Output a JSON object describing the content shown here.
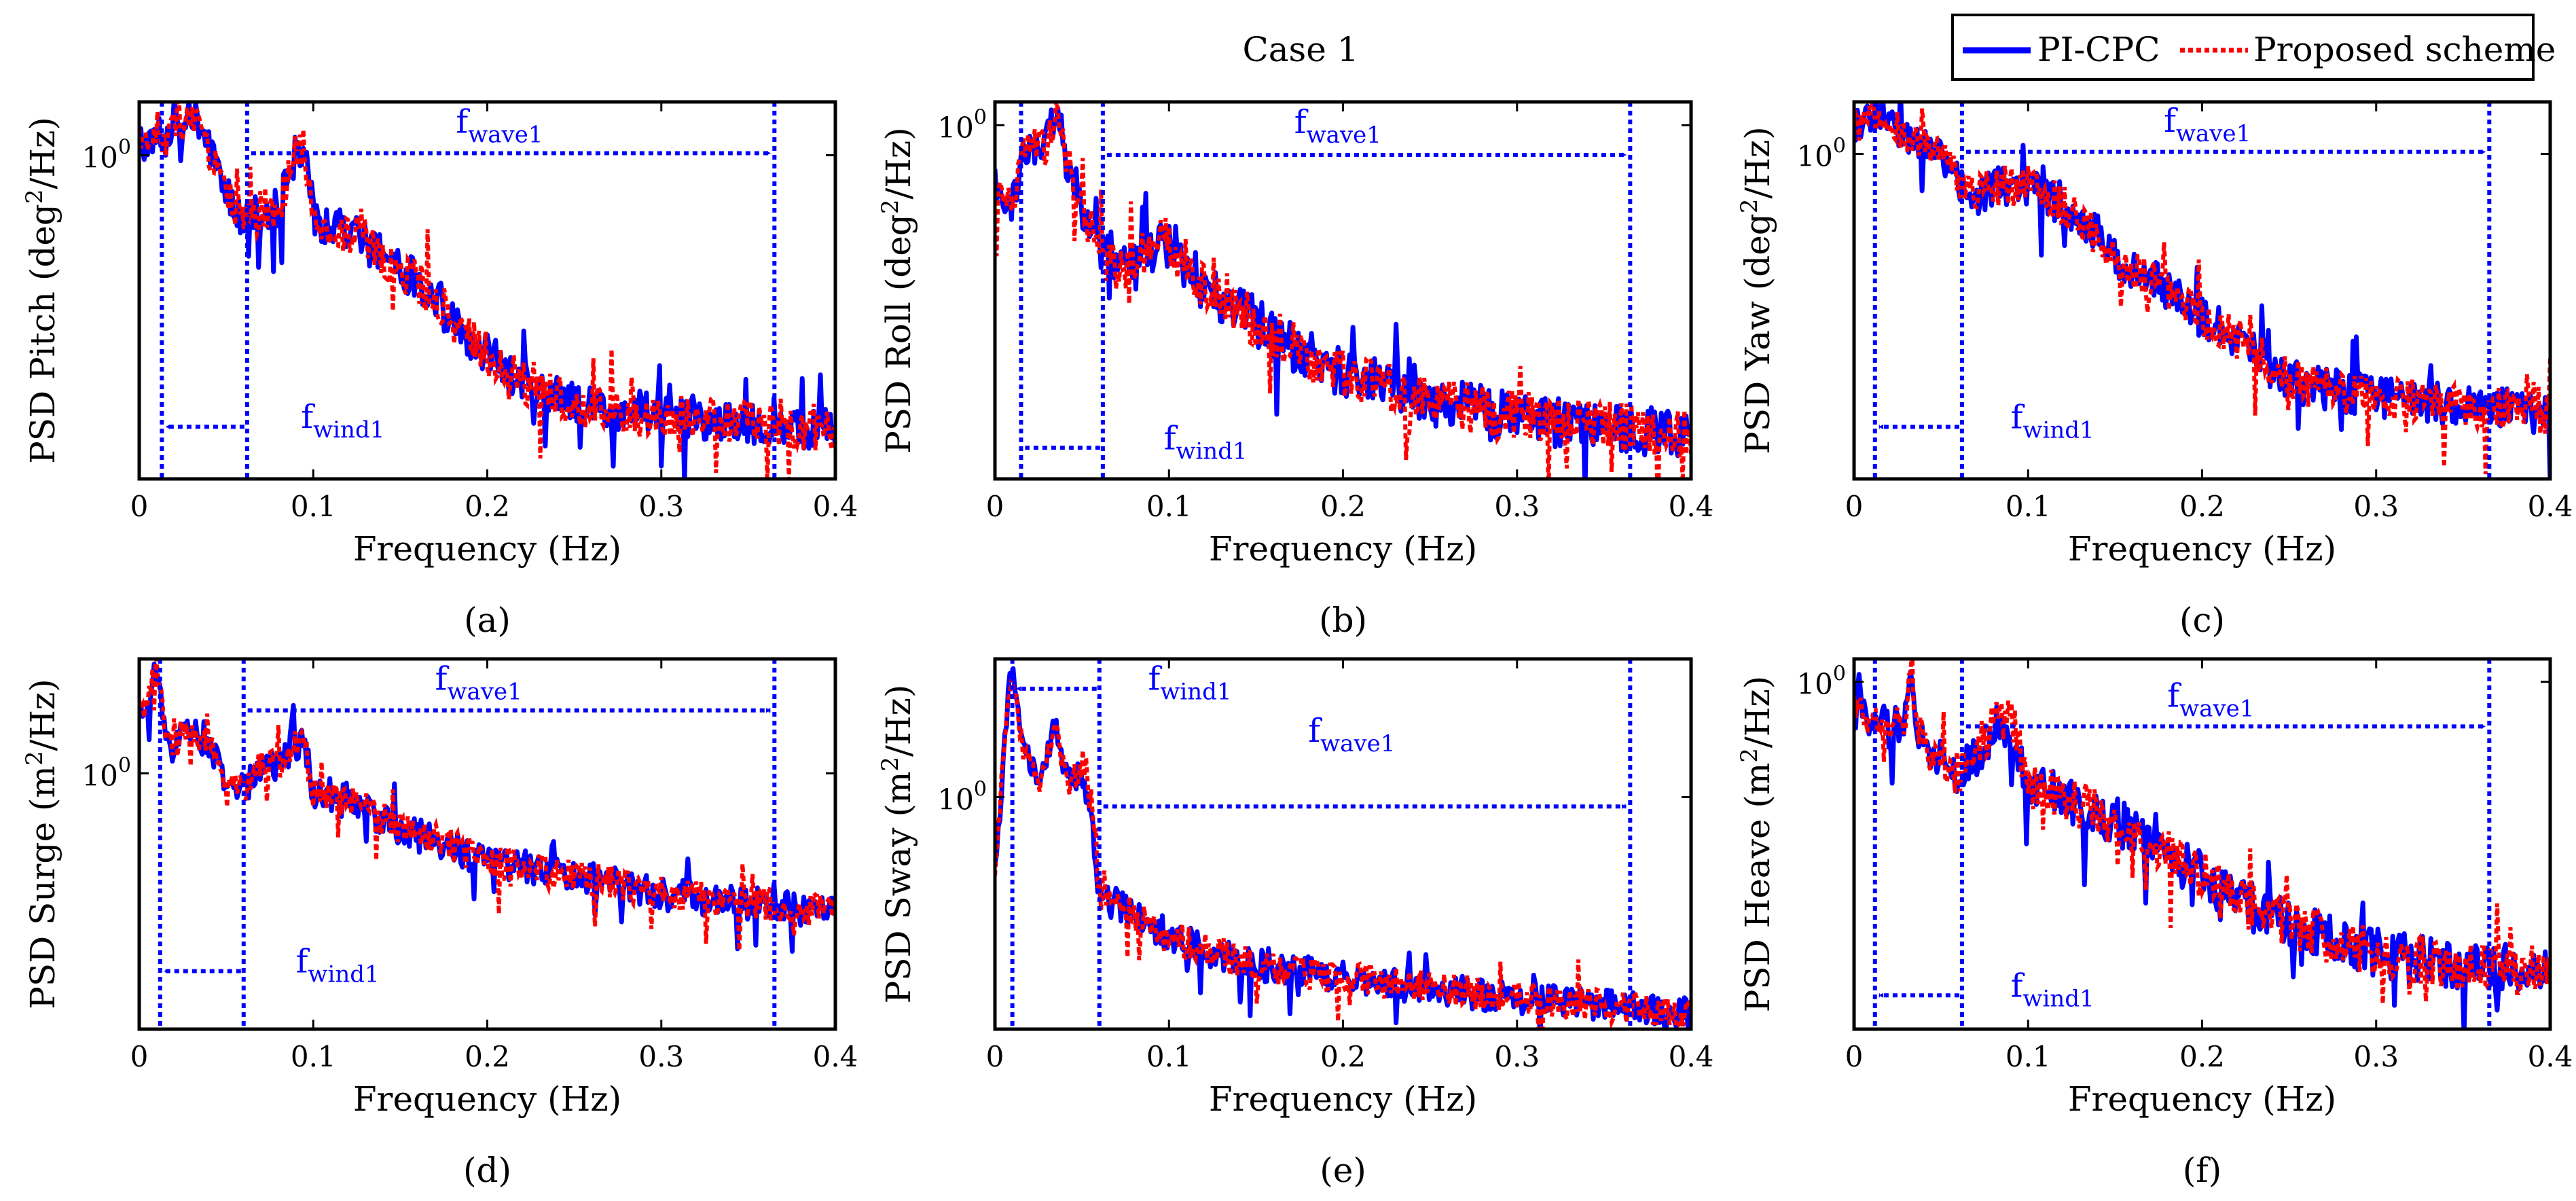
{
  "figure_title": "Case 1",
  "legend": {
    "entries": [
      "PI-CPC",
      "Proposed scheme"
    ]
  },
  "colors": {
    "pi_cpc": "#0000ff",
    "proposed": "#ff0000",
    "marker": "#0000ff",
    "axes": "#000000"
  },
  "chart_data": [
    {
      "type": "line",
      "caption": "(a)",
      "xlabel": "Frequency (Hz)",
      "ylabel_prefix": "PSD Pitch (deg",
      "ylabel_sup": "2",
      "ylabel_suffix": "/Hz)",
      "yscale": "log",
      "ylim": [
        0.0005,
        3.5
      ],
      "xlim": [
        0,
        0.4
      ],
      "xticks": [
        0,
        0.1,
        0.2,
        0.3,
        0.4
      ],
      "xtick_labels": [
        "0",
        "0.1",
        "0.2",
        "0.3",
        "0.4"
      ],
      "ytick_base": "10",
      "ytick_exp": "0",
      "ytick_value": 1.0,
      "series_names": [
        "PI-CPC",
        "Proposed scheme"
      ],
      "profile": [
        [
          0,
          1.6
        ],
        [
          0.005,
          1.2
        ],
        [
          0.01,
          2
        ],
        [
          0.015,
          1.5
        ],
        [
          0.02,
          2.5
        ],
        [
          0.025,
          1.7
        ],
        [
          0.03,
          3
        ],
        [
          0.035,
          1.8
        ],
        [
          0.04,
          1.2
        ],
        [
          0.05,
          0.45
        ],
        [
          0.06,
          0.2
        ],
        [
          0.065,
          0.22
        ],
        [
          0.07,
          0.3
        ],
        [
          0.08,
          0.3
        ],
        [
          0.09,
          1.1
        ],
        [
          0.095,
          1.2
        ],
        [
          0.1,
          0.25
        ],
        [
          0.11,
          0.2
        ],
        [
          0.12,
          0.18
        ],
        [
          0.13,
          0.14
        ],
        [
          0.15,
          0.07
        ],
        [
          0.17,
          0.04
        ],
        [
          0.18,
          0.02
        ],
        [
          0.2,
          0.01
        ],
        [
          0.22,
          0.005
        ],
        [
          0.25,
          0.003
        ],
        [
          0.3,
          0.0024
        ],
        [
          0.35,
          0.002
        ],
        [
          0.4,
          0.0016
        ]
      ],
      "markers": {
        "wind_lines": [
          0.013,
          0.062
        ],
        "wave_line": 0.365,
        "wave_arrow": {
          "x0": 0.062,
          "x1": 0.365,
          "y": 1.05
        },
        "wind_arrow": {
          "x0": 0.013,
          "x1": 0.062,
          "y": 0.0017
        }
      },
      "annotations": [
        {
          "base": "f",
          "sub": "wave1",
          "x": 0.182,
          "y": 1.7
        },
        {
          "base": "f",
          "sub": "wind1",
          "x": 0.093,
          "y": 0.00165
        }
      ]
    },
    {
      "type": "line",
      "caption": "(b)",
      "xlabel": "Frequency (Hz)",
      "ylabel_prefix": "PSD Roll (deg",
      "ylabel_sup": "2",
      "ylabel_suffix": "/Hz)",
      "yscale": "log",
      "ylim": [
        0.0008,
        1.6
      ],
      "xlim": [
        0,
        0.4
      ],
      "xticks": [
        0,
        0.1,
        0.2,
        0.3,
        0.4
      ],
      "xtick_labels": [
        "0",
        "0.1",
        "0.2",
        "0.3",
        "0.4"
      ],
      "ytick_base": "10",
      "ytick_exp": "0",
      "ytick_value": 1.0,
      "series_names": [
        "PI-CPC",
        "Proposed scheme"
      ],
      "profile": [
        [
          0,
          0.25
        ],
        [
          0.01,
          0.2
        ],
        [
          0.015,
          0.6
        ],
        [
          0.02,
          0.65
        ],
        [
          0.03,
          0.7
        ],
        [
          0.035,
          1.5
        ],
        [
          0.04,
          0.6
        ],
        [
          0.05,
          0.2
        ],
        [
          0.06,
          0.08
        ],
        [
          0.07,
          0.06
        ],
        [
          0.08,
          0.06
        ],
        [
          0.09,
          0.09
        ],
        [
          0.1,
          0.1
        ],
        [
          0.12,
          0.04
        ],
        [
          0.15,
          0.02
        ],
        [
          0.18,
          0.01
        ],
        [
          0.2,
          0.007
        ],
        [
          0.25,
          0.004
        ],
        [
          0.3,
          0.003
        ],
        [
          0.35,
          0.0025
        ],
        [
          0.4,
          0.002
        ]
      ],
      "markers": {
        "wind_lines": [
          0.015,
          0.062
        ],
        "wave_line": 0.365,
        "wave_arrow": {
          "x0": 0.062,
          "x1": 0.365,
          "y": 0.55
        },
        "wind_arrow": {
          "x0": 0.015,
          "x1": 0.062,
          "y": 0.0015
        }
      },
      "annotations": [
        {
          "base": "f",
          "sub": "wave1",
          "x": 0.172,
          "y": 0.85
        },
        {
          "base": "f",
          "sub": "wind1",
          "x": 0.097,
          "y": 0.00145
        }
      ]
    },
    {
      "type": "line",
      "caption": "(c)",
      "xlabel": "Frequency (Hz)",
      "ylabel_prefix": "PSD Yaw (deg",
      "ylabel_sup": "2",
      "ylabel_suffix": "/Hz)",
      "yscale": "log",
      "ylim": [
        0.0004,
        3.5
      ],
      "xlim": [
        0,
        0.4
      ],
      "xticks": [
        0,
        0.1,
        0.2,
        0.3,
        0.4
      ],
      "xtick_labels": [
        "0",
        "0.1",
        "0.2",
        "0.3",
        "0.4"
      ],
      "ytick_base": "10",
      "ytick_exp": "0",
      "ytick_value": 1.0,
      "series_names": [
        "PI-CPC",
        "Proposed scheme"
      ],
      "profile": [
        [
          0,
          2
        ],
        [
          0.01,
          2.3
        ],
        [
          0.015,
          3
        ],
        [
          0.02,
          2.5
        ],
        [
          0.03,
          1.5
        ],
        [
          0.04,
          1.3
        ],
        [
          0.05,
          1
        ],
        [
          0.06,
          0.6
        ],
        [
          0.07,
          0.4
        ],
        [
          0.08,
          0.5
        ],
        [
          0.1,
          0.5
        ],
        [
          0.12,
          0.3
        ],
        [
          0.14,
          0.15
        ],
        [
          0.15,
          0.08
        ],
        [
          0.18,
          0.04
        ],
        [
          0.2,
          0.02
        ],
        [
          0.23,
          0.01
        ],
        [
          0.24,
          0.006
        ],
        [
          0.26,
          0.004
        ],
        [
          0.3,
          0.003
        ],
        [
          0.35,
          0.0025
        ],
        [
          0.4,
          0.002
        ]
      ],
      "markers": {
        "wind_lines": [
          0.012,
          0.062
        ],
        "wave_line": 0.365,
        "wave_arrow": {
          "x0": 0.062,
          "x1": 0.365,
          "y": 1.05
        },
        "wind_arrow": {
          "x0": 0.012,
          "x1": 0.062,
          "y": 0.0014
        }
      },
      "annotations": [
        {
          "base": "f",
          "sub": "wave1",
          "x": 0.178,
          "y": 1.7
        },
        {
          "base": "f",
          "sub": "wind1",
          "x": 0.09,
          "y": 0.00135
        }
      ]
    },
    {
      "type": "line",
      "caption": "(d)",
      "xlabel": "Frequency (Hz)",
      "ylabel_prefix": "PSD Surge (m",
      "ylabel_sup": "2",
      "ylabel_suffix": "/Hz)",
      "yscale": "log",
      "ylim": [
        0.0005,
        30
      ],
      "xlim": [
        0,
        0.4
      ],
      "xticks": [
        0,
        0.1,
        0.2,
        0.3,
        0.4
      ],
      "xtick_labels": [
        "0",
        "0.1",
        "0.2",
        "0.3",
        "0.4"
      ],
      "ytick_base": "10",
      "ytick_exp": "0",
      "ytick_value": 1.0,
      "series_names": [
        "PI-CPC",
        "Proposed scheme"
      ],
      "profile": [
        [
          0,
          6
        ],
        [
          0.005,
          8
        ],
        [
          0.01,
          28
        ],
        [
          0.015,
          3
        ],
        [
          0.02,
          2
        ],
        [
          0.025,
          4
        ],
        [
          0.03,
          3
        ],
        [
          0.04,
          2.5
        ],
        [
          0.05,
          0.8
        ],
        [
          0.06,
          0.7
        ],
        [
          0.07,
          1.2
        ],
        [
          0.08,
          1.3
        ],
        [
          0.09,
          2.5
        ],
        [
          0.095,
          2.5
        ],
        [
          0.1,
          0.6
        ],
        [
          0.12,
          0.5
        ],
        [
          0.15,
          0.2
        ],
        [
          0.18,
          0.12
        ],
        [
          0.2,
          0.08
        ],
        [
          0.25,
          0.05
        ],
        [
          0.3,
          0.03
        ],
        [
          0.35,
          0.022
        ],
        [
          0.4,
          0.017
        ]
      ],
      "markers": {
        "wind_lines": [
          0.012,
          0.06
        ],
        "wave_line": 0.365,
        "wave_arrow": {
          "x0": 0.06,
          "x1": 0.365,
          "y": 6.5
        },
        "wind_arrow": {
          "x0": 0.012,
          "x1": 0.06,
          "y": 0.0028
        }
      },
      "annotations": [
        {
          "base": "f",
          "sub": "wave1",
          "x": 0.17,
          "y": 12
        },
        {
          "base": "f",
          "sub": "wind1",
          "x": 0.09,
          "y": 0.0027
        }
      ]
    },
    {
      "type": "line",
      "caption": "(e)",
      "xlabel": "Frequency (Hz)",
      "ylabel_prefix": "PSD Sway (m",
      "ylabel_sup": "2",
      "ylabel_suffix": "/Hz)",
      "yscale": "log",
      "ylim": [
        0.0008,
        70
      ],
      "xlim": [
        0,
        0.4
      ],
      "xticks": [
        0,
        0.1,
        0.2,
        0.3,
        0.4
      ],
      "xtick_labels": [
        "0",
        "0.1",
        "0.2",
        "0.3",
        "0.4"
      ],
      "ytick_base": "10",
      "ytick_exp": "0",
      "ytick_value": 1.0,
      "series_names": [
        "PI-CPC",
        "Proposed scheme"
      ],
      "profile": [
        [
          0,
          0.1
        ],
        [
          0.003,
          0.8
        ],
        [
          0.006,
          10
        ],
        [
          0.01,
          60
        ],
        [
          0.015,
          5
        ],
        [
          0.02,
          3
        ],
        [
          0.025,
          1.5
        ],
        [
          0.03,
          4
        ],
        [
          0.035,
          10
        ],
        [
          0.04,
          2
        ],
        [
          0.05,
          2
        ],
        [
          0.055,
          0.8
        ],
        [
          0.06,
          0.05
        ],
        [
          0.07,
          0.04
        ],
        [
          0.1,
          0.015
        ],
        [
          0.12,
          0.01
        ],
        [
          0.15,
          0.006
        ],
        [
          0.2,
          0.004
        ],
        [
          0.25,
          0.003
        ],
        [
          0.3,
          0.0022
        ],
        [
          0.35,
          0.0017
        ],
        [
          0.4,
          0.0014
        ]
      ],
      "markers": {
        "wind_lines": [
          0.01,
          0.06
        ],
        "wave_line": 0.365,
        "wave_arrow": {
          "x0": 0.06,
          "x1": 0.365,
          "y": 0.75
        },
        "wind_arrow": {
          "x0": 0.01,
          "x1": 0.06,
          "y": 28
        }
      },
      "annotations": [
        {
          "base": "f",
          "sub": "wave1",
          "x": 0.18,
          "y": 5.5
        },
        {
          "base": "f",
          "sub": "wind1",
          "x": 0.088,
          "y": 27
        }
      ]
    },
    {
      "type": "line",
      "caption": "(f)",
      "xlabel": "Frequency (Hz)",
      "ylabel_prefix": "PSD Heave (m",
      "ylabel_sup": "2",
      "ylabel_suffix": "/Hz)",
      "yscale": "log",
      "ylim": [
        0.0008,
        1.6
      ],
      "xlim": [
        0,
        0.4
      ],
      "xticks": [
        0,
        0.1,
        0.2,
        0.3,
        0.4
      ],
      "xtick_labels": [
        "0",
        "0.1",
        "0.2",
        "0.3",
        "0.4"
      ],
      "ytick_base": "10",
      "ytick_exp": "0",
      "ytick_value": 1.0,
      "series_names": [
        "PI-CPC",
        "Proposed scheme"
      ],
      "profile": [
        [
          0,
          0.6
        ],
        [
          0.01,
          0.5
        ],
        [
          0.02,
          0.4
        ],
        [
          0.03,
          0.5
        ],
        [
          0.033,
          1.5
        ],
        [
          0.036,
          0.4
        ],
        [
          0.04,
          0.3
        ],
        [
          0.05,
          0.2
        ],
        [
          0.06,
          0.15
        ],
        [
          0.07,
          0.25
        ],
        [
          0.08,
          0.4
        ],
        [
          0.09,
          0.5
        ],
        [
          0.1,
          0.12
        ],
        [
          0.12,
          0.1
        ],
        [
          0.15,
          0.06
        ],
        [
          0.18,
          0.03
        ],
        [
          0.2,
          0.02
        ],
        [
          0.22,
          0.012
        ],
        [
          0.25,
          0.007
        ],
        [
          0.3,
          0.004
        ],
        [
          0.35,
          0.003
        ],
        [
          0.4,
          0.0028
        ]
      ],
      "markers": {
        "wind_lines": [
          0.012,
          0.062
        ],
        "wave_line": 0.365,
        "wave_arrow": {
          "x0": 0.062,
          "x1": 0.365,
          "y": 0.4
        },
        "wind_arrow": {
          "x0": 0.012,
          "x1": 0.062,
          "y": 0.0016
        }
      },
      "annotations": [
        {
          "base": "f",
          "sub": "wave1",
          "x": 0.18,
          "y": 0.6
        },
        {
          "base": "f",
          "sub": "wind1",
          "x": 0.09,
          "y": 0.00155
        }
      ]
    }
  ]
}
